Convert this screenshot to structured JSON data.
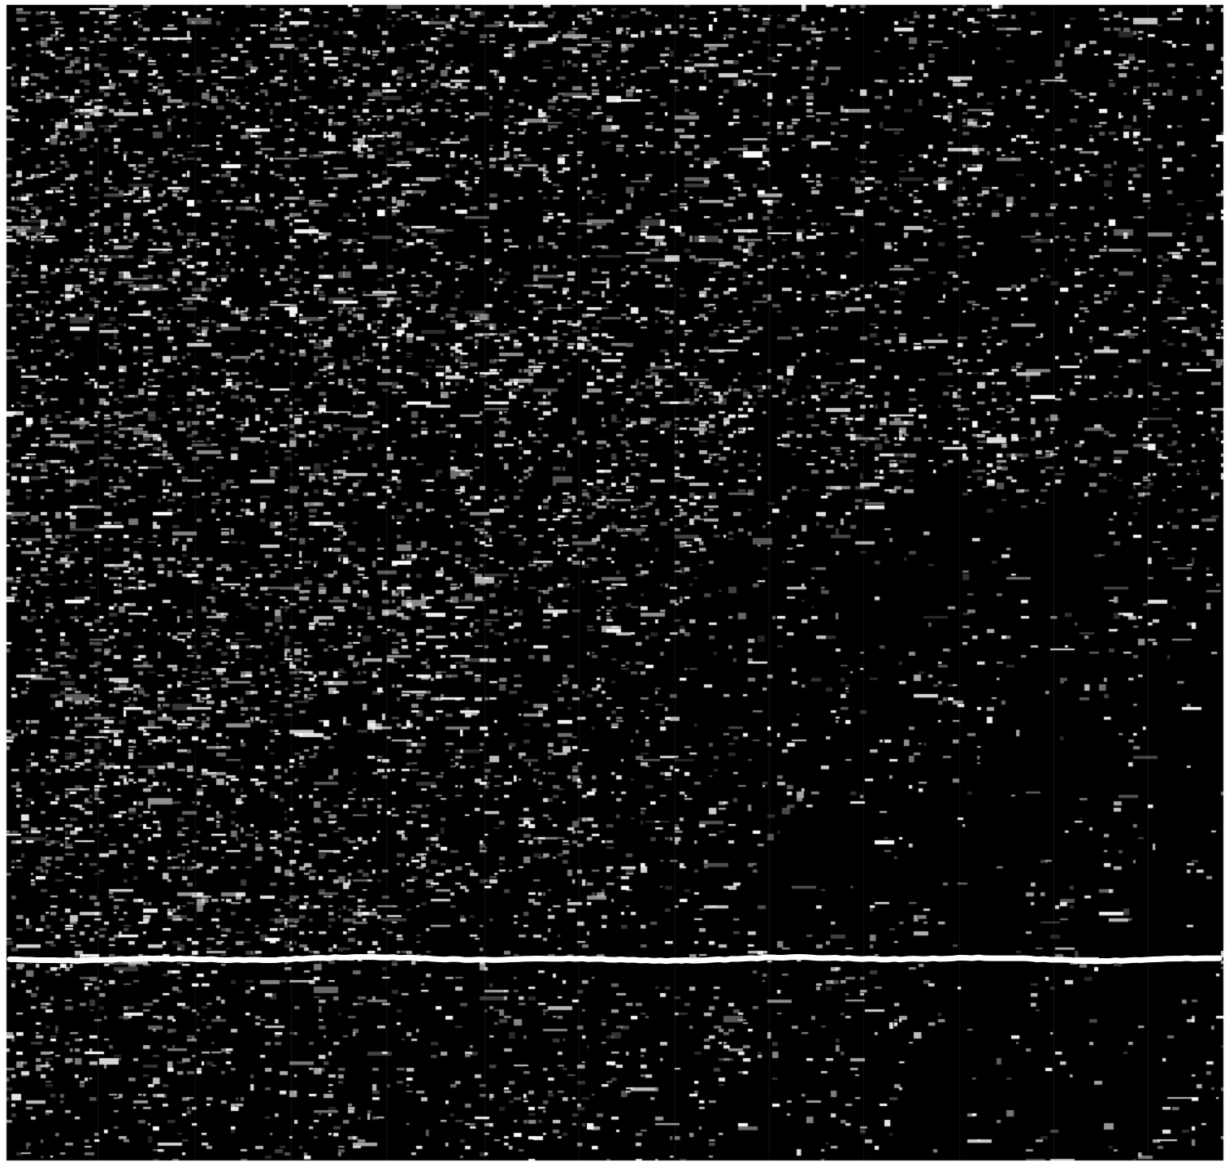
{
  "image": {
    "kind": "dark speckled texture with a bright horizontal line",
    "colors": {
      "background": "#000000",
      "speckle": "#ffffff",
      "border": "#ffffff",
      "line": "#ffffff"
    }
  }
}
